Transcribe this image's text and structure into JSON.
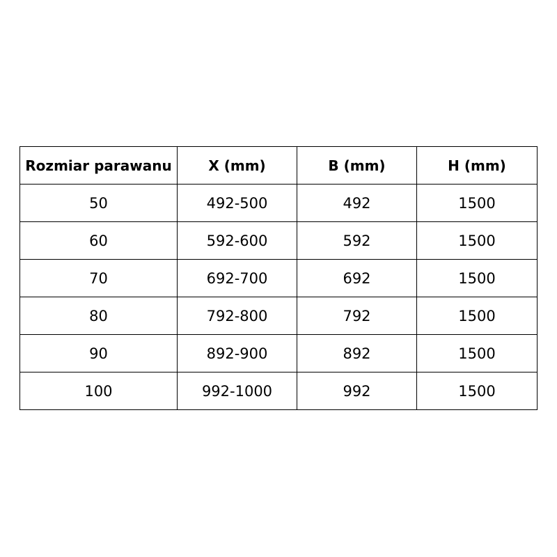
{
  "table": {
    "headers": [
      "Rozmiar parawanu",
      "X (mm)",
      "B (mm)",
      "H (mm)"
    ],
    "rows": [
      [
        "50",
        "492-500",
        "492",
        "1500"
      ],
      [
        "60",
        "592-600",
        "592",
        "1500"
      ],
      [
        "70",
        "692-700",
        "692",
        "1500"
      ],
      [
        "80",
        "792-800",
        "792",
        "1500"
      ],
      [
        "90",
        "892-900",
        "892",
        "1500"
      ],
      [
        "100",
        "992-1000",
        "992",
        "1500"
      ]
    ]
  }
}
